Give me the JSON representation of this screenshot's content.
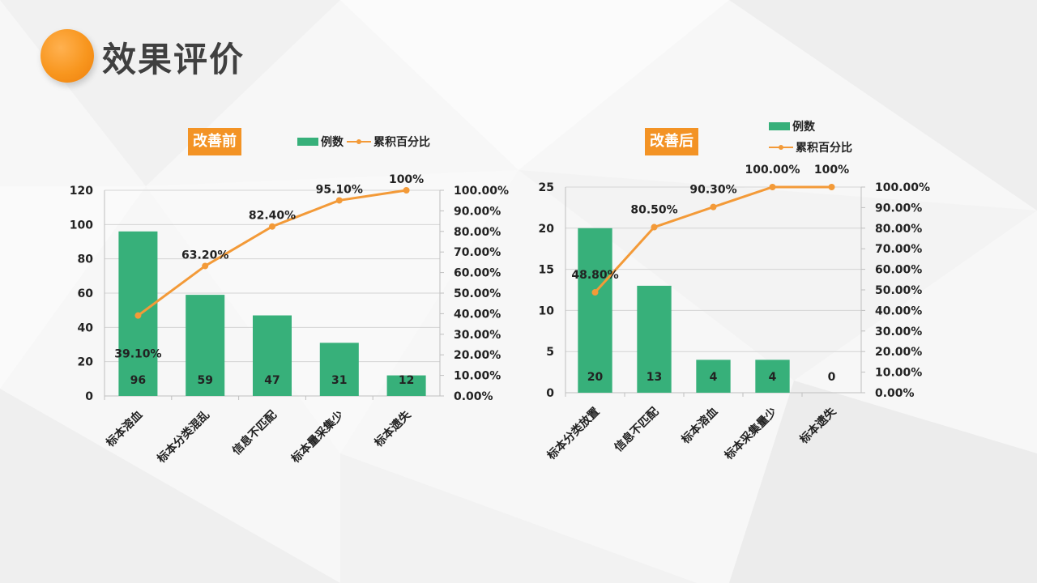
{
  "header": {
    "title": "效果评价"
  },
  "legend": {
    "bar_label": "例数",
    "line_label": "累积百分比"
  },
  "colors": {
    "bar": "#37b07a",
    "line": "#f39a38",
    "accent": "#f39325"
  },
  "chart_data": [
    {
      "type": "bar",
      "title": "改善前",
      "categories": [
        "标本溶血",
        "标本分类混乱",
        "信息不匹配",
        "标本量采集少",
        "标本遗失"
      ],
      "series": [
        {
          "name": "例数",
          "type": "bar",
          "axis": "left",
          "values": [
            96,
            59,
            47,
            31,
            12
          ],
          "labels": [
            "96",
            "59",
            "47",
            "31",
            "12"
          ]
        },
        {
          "name": "累积百分比",
          "type": "line",
          "axis": "right",
          "values": [
            39.1,
            63.2,
            82.4,
            95.1,
            100
          ],
          "labels": [
            "39.10%",
            "63.20%",
            "82.40%",
            "95.10%",
            "100%"
          ]
        }
      ],
      "ylim": [
        0,
        120
      ],
      "yticks": [
        "0",
        "20",
        "40",
        "60",
        "80",
        "100",
        "120"
      ],
      "y2lim": [
        0,
        100
      ],
      "y2ticks": [
        "0.00%",
        "10.00%",
        "20.00%",
        "30.00%",
        "40.00%",
        "50.00%",
        "60.00%",
        "70.00%",
        "80.00%",
        "90.00%",
        "100.00%"
      ],
      "grid": true,
      "legend": "top"
    },
    {
      "type": "bar",
      "title": "改善后",
      "categories": [
        "标本分类放置",
        "信息不匹配",
        "标本溶血",
        "标本采集量少",
        "标本遗失"
      ],
      "series": [
        {
          "name": "例数",
          "type": "bar",
          "axis": "left",
          "values": [
            20,
            13,
            4,
            4,
            0
          ],
          "labels": [
            "20",
            "13",
            "4",
            "4",
            "0"
          ]
        },
        {
          "name": "累积百分比",
          "type": "line",
          "axis": "right",
          "values": [
            48.8,
            80.5,
            90.3,
            100,
            100
          ],
          "labels": [
            "48.80%",
            "80.50%",
            "90.30%",
            "100.00%",
            "100%"
          ]
        }
      ],
      "ylim": [
        0,
        25
      ],
      "yticks": [
        "0",
        "5",
        "10",
        "15",
        "20",
        "25"
      ],
      "y2lim": [
        0,
        100
      ],
      "y2ticks": [
        "0.00%",
        "10.00%",
        "20.00%",
        "30.00%",
        "40.00%",
        "50.00%",
        "60.00%",
        "70.00%",
        "80.00%",
        "90.00%",
        "100.00%"
      ],
      "grid": true,
      "legend": "top-right"
    }
  ]
}
